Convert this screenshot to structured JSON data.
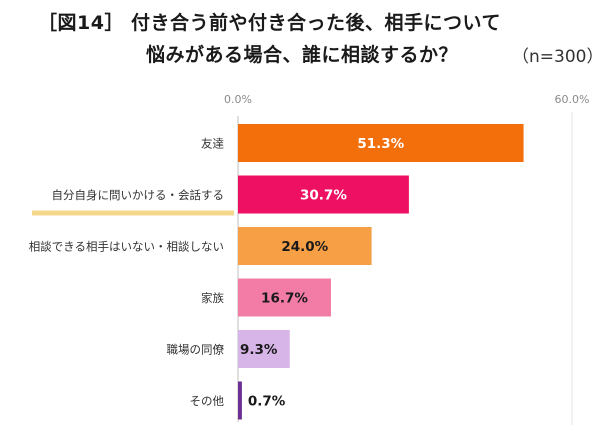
{
  "title_line1": "［図14］ 付き合う前や付き合った後、相手について",
  "title_line2": "悩みがある場合、誰に相談するか？",
  "sample_note": "（n=300）",
  "chart_data": {
    "type": "bar",
    "orientation": "horizontal",
    "xlim": [
      0,
      60
    ],
    "axis_tick_labels": [
      "0.0%",
      "60.0%"
    ],
    "categories": [
      "友達",
      "自分自身に問いかける・会話する",
      "相談できる相手はいない・相談しない",
      "家族",
      "職場の同僚",
      "その他"
    ],
    "values": [
      51.3,
      30.7,
      24.0,
      16.7,
      9.3,
      0.7
    ],
    "value_labels": [
      "51.3%",
      "30.7%",
      "24.0%",
      "16.7%",
      "9.3%",
      "0.7%"
    ],
    "colors": [
      "#f36f0c",
      "#ee1163",
      "#f79f45",
      "#f27ca6",
      "#d8b5e8",
      "#6e2f93"
    ],
    "label_colors": [
      "#ffffff",
      "#ffffff",
      "#1a1a1a",
      "#1a1a1a",
      "#1a1a1a",
      "#1a1a1a"
    ],
    "highlight_underline_color": "#f3d78a",
    "grid": false,
    "legend": "none"
  }
}
